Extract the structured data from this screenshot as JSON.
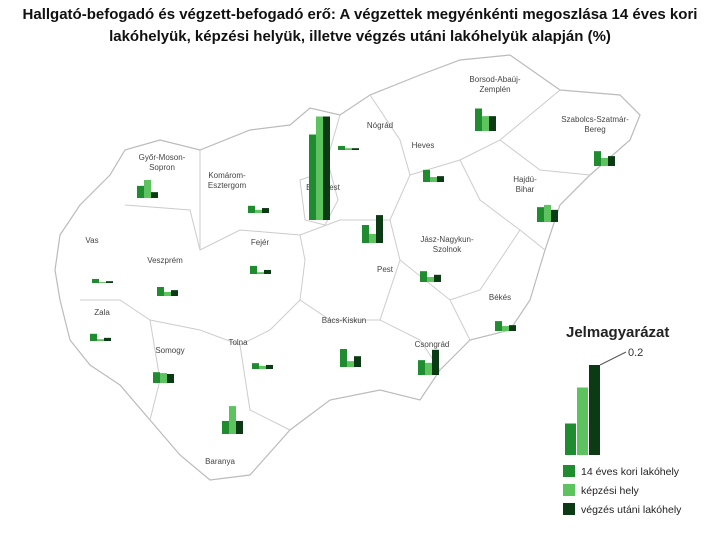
{
  "title": "Hallgató-befogadó és végzett-befogadó erő: A végzettek megyénkénti megoszlása 14 éves kori lakóhelyük, képzési helyük, illetve végzés utáni lakóhelyük alapján (%)",
  "series": [
    {
      "name": "14 éves kori lakóhely",
      "color": "#1e8c2f"
    },
    {
      "name": "képzési hely",
      "color": "#5cc35e"
    },
    {
      "name": "végzés utáni lakóhely",
      "color": "#0c3a14"
    }
  ],
  "legend": {
    "title": "Jelmagyarázat",
    "scale_value": 0.2,
    "values": [
      0.07,
      0.15,
      0.2
    ]
  },
  "regions": [
    {
      "name": [
        "Borsod-Abaúj-",
        "Zemplén"
      ],
      "values": [
        0.05,
        0.033,
        0.033
      ]
    },
    {
      "name": [
        "Szabolcs-Szatmár-",
        "Bereg"
      ],
      "values": [
        0.033,
        0.018,
        0.022
      ]
    },
    {
      "name": [
        "Nógrád"
      ],
      "values": [
        0.009,
        0.004,
        0.004
      ]
    },
    {
      "name": [
        "Heves"
      ],
      "values": [
        0.027,
        0.011,
        0.013
      ]
    },
    {
      "name": [
        "Budapest"
      ],
      "values": [
        0.19,
        0.23,
        0.23
      ]
    },
    {
      "name": [
        "Győr-Moson-",
        "Sopron"
      ],
      "values": [
        0.027,
        0.04,
        0.013
      ]
    },
    {
      "name": [
        "Komárom-",
        "Esztergom"
      ],
      "values": [
        0.016,
        0.007,
        0.011
      ]
    },
    {
      "name": [
        "Hajdú-",
        "Bihar"
      ],
      "values": [
        0.033,
        0.038,
        0.027
      ]
    },
    {
      "name": [
        "Pest"
      ],
      "values": [
        0.04,
        0.02,
        0.062
      ]
    },
    {
      "name": [
        "Jász-Nagykun-",
        "Szolnok"
      ],
      "values": [
        0.024,
        0.011,
        0.016
      ]
    },
    {
      "name": [
        "Vas"
      ],
      "values": [
        0.009,
        0.002,
        0.004
      ]
    },
    {
      "name": [
        "Fejér"
      ],
      "values": [
        0.018,
        0.004,
        0.009
      ]
    },
    {
      "name": [
        "Veszprém"
      ],
      "values": [
        0.02,
        0.009,
        0.013
      ]
    },
    {
      "name": [
        "Zala"
      ],
      "values": [
        0.016,
        0.004,
        0.007
      ]
    },
    {
      "name": [
        "Békés"
      ],
      "values": [
        0.022,
        0.011,
        0.013
      ]
    },
    {
      "name": [
        "Bács-Kiskun"
      ],
      "values": [
        0.04,
        0.013,
        0.024
      ]
    },
    {
      "name": [
        "Somogy"
      ],
      "values": [
        0.024,
        0.022,
        0.02
      ]
    },
    {
      "name": [
        "Tolna"
      ],
      "values": [
        0.013,
        0.007,
        0.009
      ]
    },
    {
      "name": [
        "Csongrád"
      ],
      "values": [
        0.033,
        0.027,
        0.056
      ]
    },
    {
      "name": [
        "Baranya"
      ],
      "values": [
        0.029,
        0.062,
        0.029
      ]
    }
  ]
}
